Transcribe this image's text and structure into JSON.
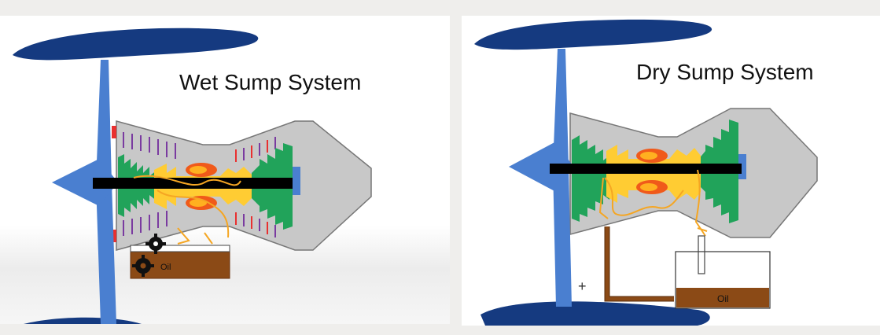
{
  "wet_panel": {
    "title": "Wet Sump System",
    "oil_label": "Oil"
  },
  "dry_panel": {
    "title": "Dry Sump System",
    "oil_label": "Oil",
    "plus_marker": "+"
  },
  "colors": {
    "background": "#efeeec",
    "blade": "#153a80",
    "fan": "#4a7fd0",
    "casing": "#c8c8c8",
    "compressor": "#21a35a",
    "turbine_core": "#ffcc33",
    "flame": "#f05a1a",
    "shaft": "#000000",
    "oil": "#8b4a16",
    "oil_line": "#f5a623",
    "fin_purple": "#7a3ba0",
    "fin_red": "#e83030"
  }
}
